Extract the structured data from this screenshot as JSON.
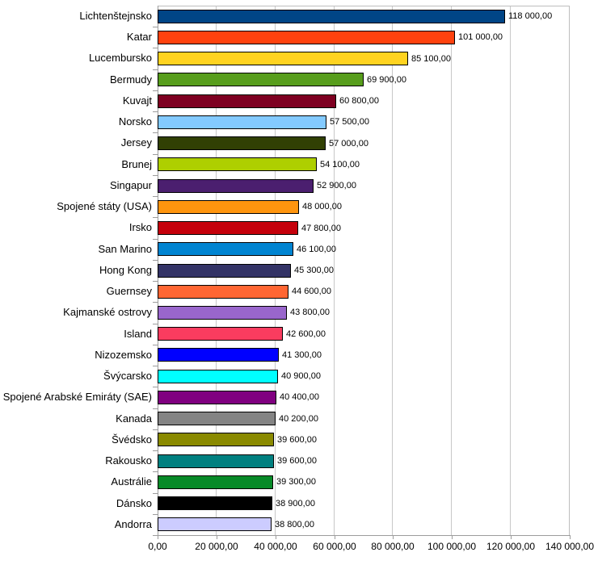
{
  "chart_data": {
    "type": "bar",
    "orientation": "horizontal",
    "title": "",
    "xlabel": "",
    "ylabel": "",
    "xlim": [
      0,
      140000
    ],
    "grid": "vertical-major",
    "legend": "none",
    "x_ticks": [
      {
        "value": 0,
        "label": "0,00"
      },
      {
        "value": 20000,
        "label": "20 000,00"
      },
      {
        "value": 40000,
        "label": "40 000,00"
      },
      {
        "value": 60000,
        "label": "60 000,00"
      },
      {
        "value": 80000,
        "label": "80 000,00"
      },
      {
        "value": 100000,
        "label": "100 000,00"
      },
      {
        "value": 120000,
        "label": "120 000,00"
      },
      {
        "value": 140000,
        "label": "140 000,00"
      }
    ],
    "items": [
      {
        "label": "Lichtenštejnsko",
        "value": 118000,
        "value_label": "118 000,00",
        "color": "#004586"
      },
      {
        "label": "Katar",
        "value": 101000,
        "value_label": "101 000,00",
        "color": "#FF420E"
      },
      {
        "label": "Lucembursko",
        "value": 85100,
        "value_label": "85 100,00",
        "color": "#FFD320"
      },
      {
        "label": "Bermudy",
        "value": 69900,
        "value_label": "69 900,00",
        "color": "#579D1C"
      },
      {
        "label": "Kuvajt",
        "value": 60800,
        "value_label": "60 800,00",
        "color": "#7E0021"
      },
      {
        "label": "Norsko",
        "value": 57500,
        "value_label": "57 500,00",
        "color": "#83CAFF"
      },
      {
        "label": "Jersey",
        "value": 57000,
        "value_label": "57 000,00",
        "color": "#314004"
      },
      {
        "label": "Brunej",
        "value": 54100,
        "value_label": "54 100,00",
        "color": "#AECF00"
      },
      {
        "label": "Singapur",
        "value": 52900,
        "value_label": "52 900,00",
        "color": "#4B1F6F"
      },
      {
        "label": "Spojené státy (USA)",
        "value": 48000,
        "value_label": "48 000,00",
        "color": "#FF950E"
      },
      {
        "label": "Irsko",
        "value": 47800,
        "value_label": "47 800,00",
        "color": "#C5000B"
      },
      {
        "label": "San Marino",
        "value": 46100,
        "value_label": "46 100,00",
        "color": "#0084D1"
      },
      {
        "label": "Hong Kong",
        "value": 45300,
        "value_label": "45 300,00",
        "color": "#333366"
      },
      {
        "label": "Guernsey",
        "value": 44600,
        "value_label": "44 600,00",
        "color": "#FF6633"
      },
      {
        "label": "Kajmanské ostrovy",
        "value": 43800,
        "value_label": "43 800,00",
        "color": "#9966CC"
      },
      {
        "label": "Island",
        "value": 42600,
        "value_label": "42 600,00",
        "color": "#FA3C5F"
      },
      {
        "label": "Nizozemsko",
        "value": 41300,
        "value_label": "41 300,00",
        "color": "#0000FF"
      },
      {
        "label": "Švýcarsko",
        "value": 40900,
        "value_label": "40 900,00",
        "color": "#00FFFF"
      },
      {
        "label": "Spojené Arabské Emiráty (SAE)",
        "value": 40400,
        "value_label": "40 400,00",
        "color": "#800080"
      },
      {
        "label": "Kanada",
        "value": 40200,
        "value_label": "40 200,00",
        "color": "#848484"
      },
      {
        "label": "Švédsko",
        "value": 39600,
        "value_label": "39 600,00",
        "color": "#8A8A00"
      },
      {
        "label": "Rakousko",
        "value": 39600,
        "value_label": "39 600,00",
        "color": "#008080"
      },
      {
        "label": "Austrálie",
        "value": 39300,
        "value_label": "39 300,00",
        "color": "#078A28"
      },
      {
        "label": "Dánsko",
        "value": 38900,
        "value_label": "38 900,00",
        "color": "#000000"
      },
      {
        "label": "Andorra",
        "value": 38800,
        "value_label": "38 800,00",
        "color": "#CCCCFF"
      }
    ]
  },
  "colors": {
    "background": "#FFFFFF",
    "gridline": "#C8C8C8",
    "axis": "#9C9C9C",
    "plot_border": "#BEBEBE",
    "bar_border": "#000000",
    "text": "#000000"
  }
}
